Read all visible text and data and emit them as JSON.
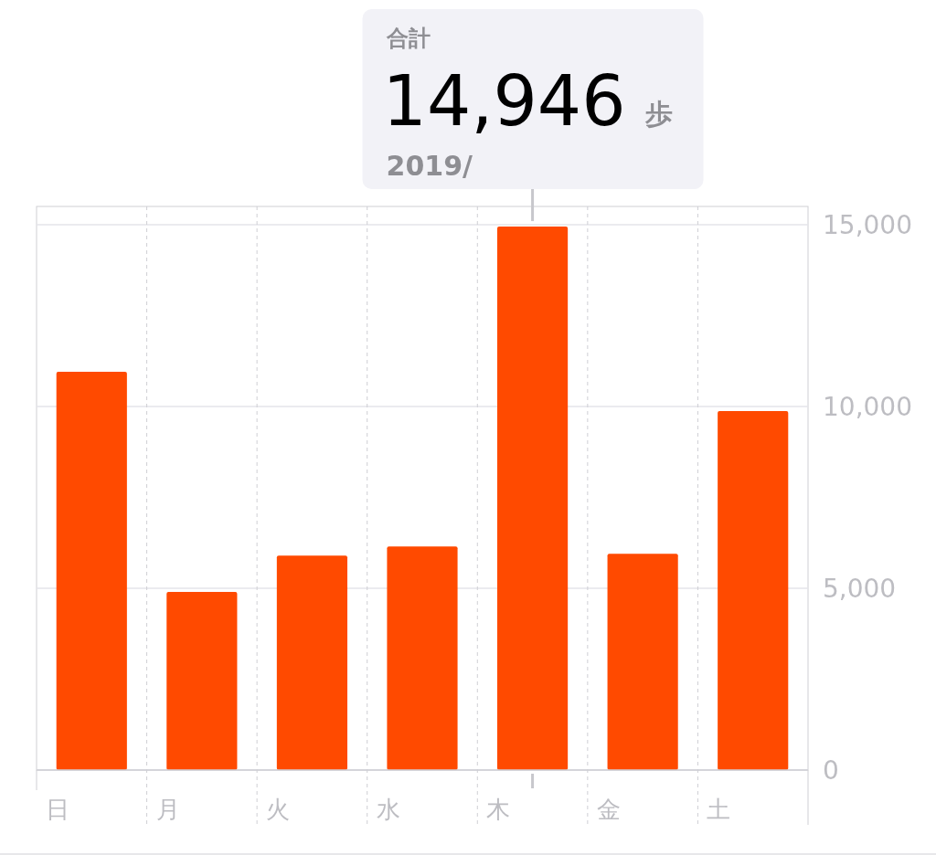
{
  "chart_data": {
    "type": "bar",
    "categories": [
      "日",
      "月",
      "火",
      "水",
      "木",
      "金",
      "土"
    ],
    "values": [
      10950,
      4900,
      5900,
      6150,
      14946,
      5950,
      9870
    ],
    "color": "#ff4a00",
    "ylim": [
      0,
      15500
    ],
    "yticks": [
      0,
      {
        "value": 5000,
        "label": "5,000"
      },
      {
        "value": 10000,
        "label": "10,000"
      },
      {
        "value": 15000,
        "label": "15,000"
      }
    ],
    "grid": true,
    "annotations": [
      "合計",
      {
        "text": "14,946",
        "x": "木",
        "y": 14946
      },
      "歩",
      "2019/"
    ]
  }
}
